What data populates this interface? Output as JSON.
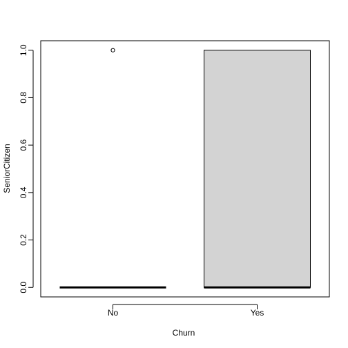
{
  "chart_data": {
    "type": "boxplot",
    "title": "",
    "xlabel": "Churn",
    "ylabel": "SeniorCitizen",
    "categories": [
      "No",
      "Yes"
    ],
    "ylim": [
      -0.04,
      1.04
    ],
    "yticks": [
      "0.0",
      "0.2",
      "0.4",
      "0.6",
      "0.8",
      "1.0"
    ],
    "ytick_values": [
      0,
      0.2,
      0.4,
      0.6,
      0.8,
      1.0
    ],
    "boxes": [
      {
        "category": "No",
        "min": 0,
        "q1": 0,
        "median": 0,
        "q3": 0,
        "max": 0,
        "outliers": [
          1
        ]
      },
      {
        "category": "Yes",
        "min": 0,
        "q1": 0,
        "median": 0,
        "q3": 1,
        "max": 1,
        "outliers": []
      }
    ],
    "box_fill": "#d3d3d3",
    "grid": false,
    "legend": "none"
  }
}
